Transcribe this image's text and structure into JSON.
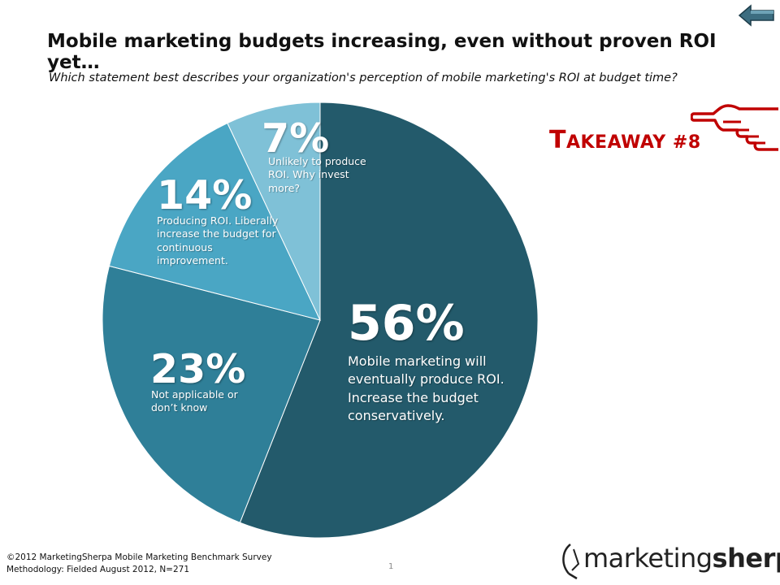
{
  "header": {
    "title": "Mobile marketing budgets increasing, even without proven ROI yet…",
    "subtitle": "Which statement best describes your organization's perception of mobile marketing's ROI at budget time?"
  },
  "takeaway": {
    "first": "T",
    "rest": "AKEAWAY #8"
  },
  "chart_data": {
    "type": "pie",
    "slices": [
      {
        "pct_label": "56%",
        "value": 56,
        "label": "Mobile marketing will eventually produce ROI. Increase the budget conservatively.",
        "color": "#235a6b"
      },
      {
        "pct_label": "23%",
        "value": 23,
        "label": "Not applicable or don’t know",
        "color": "#2f7f98"
      },
      {
        "pct_label": "14%",
        "value": 14,
        "label": "Producing ROI. Liberally increase the budget for continuous improvement.",
        "color": "#4aa6c4"
      },
      {
        "pct_label": "7%",
        "value": 7,
        "label": "Unlikely to produce ROI. Why invest more?",
        "color": "#7fc1d7"
      }
    ]
  },
  "footer": {
    "line1": "©2012 MarketingSherpa Mobile Marketing Benchmark Survey",
    "line2": "Methodology: Fielded August 2012, N=271",
    "page": "1"
  },
  "logo": {
    "part1": "marketing",
    "part2": "sherpa"
  },
  "colors": {
    "accent": "#c00000"
  },
  "icons": {
    "back": "back-arrow-icon",
    "hand": "pointing-hand-icon"
  }
}
